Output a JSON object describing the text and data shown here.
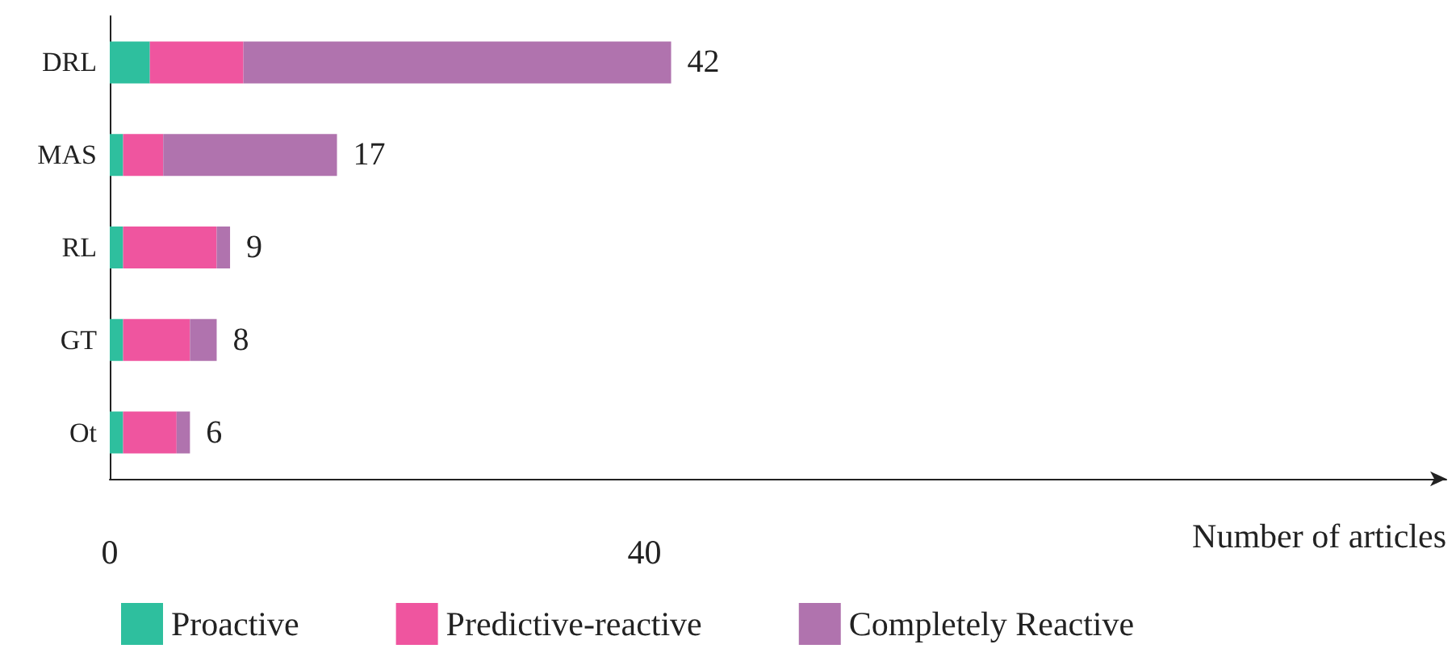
{
  "chart_data": {
    "type": "bar",
    "orientation": "horizontal",
    "stacked": true,
    "xlabel": "Number of articles",
    "categories": [
      "DRL",
      "MAS",
      "RL",
      "GT",
      "Ot"
    ],
    "series": [
      {
        "name": "Proactive",
        "color": "#2ebf9e",
        "values": [
          3,
          1,
          1,
          1,
          1
        ]
      },
      {
        "name": "Predictive-reactive",
        "color": "#ef559f",
        "values": [
          7,
          3,
          7,
          5,
          4
        ]
      },
      {
        "name": "Completely Reactive",
        "color": "#b073ae",
        "values": [
          32,
          13,
          1,
          2,
          1
        ]
      }
    ],
    "totals": [
      "42",
      "17",
      "9",
      "8",
      "6"
    ],
    "xlim": [
      0,
      100
    ],
    "xticks": [
      0,
      40
    ],
    "grid": false,
    "legend": "bottom"
  }
}
